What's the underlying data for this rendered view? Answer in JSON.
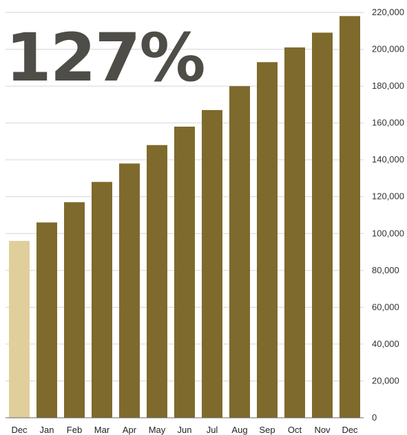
{
  "headline": "127%",
  "chart_data": {
    "type": "bar",
    "categories": [
      "Dec",
      "Jan",
      "Feb",
      "Mar",
      "Apr",
      "May",
      "Jun",
      "Jul",
      "Aug",
      "Sep",
      "Oct",
      "Nov",
      "Dec"
    ],
    "values": [
      96000,
      106000,
      117000,
      128000,
      138000,
      148000,
      158000,
      167000,
      180000,
      193000,
      201000,
      209000,
      218000
    ],
    "highlight_color": "#e0cf9b",
    "bar_color": "#7e6a2c",
    "ylim": [
      0,
      220000
    ],
    "yticks": [
      "0",
      "20,000",
      "40,000",
      "60,000",
      "80,000",
      "100,000",
      "120,000",
      "140,000",
      "160,000",
      "180,000",
      "200,000",
      "220,000"
    ],
    "ytick_values": [
      0,
      20000,
      40000,
      60000,
      80000,
      100000,
      120000,
      140000,
      160000,
      180000,
      200000,
      220000
    ],
    "grid": true,
    "y_axis_side": "right"
  }
}
